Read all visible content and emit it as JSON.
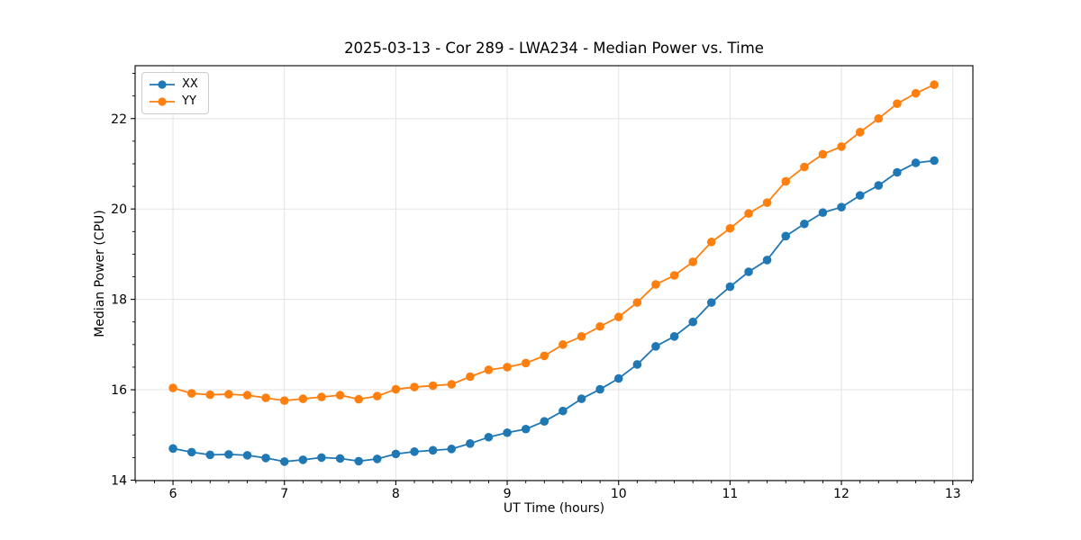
{
  "chart_data": {
    "type": "line",
    "title": "2025-03-13 - Cor 289 - LWA234 - Median Power vs. Time",
    "xlabel": "UT Time (hours)",
    "ylabel": "Median Power (CPU)",
    "xlim": [
      5.66,
      13.18
    ],
    "ylim": [
      13.99,
      23.17
    ],
    "x_ticks": [
      6,
      7,
      8,
      9,
      10,
      11,
      12,
      13
    ],
    "y_ticks": [
      14,
      16,
      18,
      20,
      22
    ],
    "x_minor_step": 0.16667,
    "y_minor_step": 0.5,
    "grid": "major-only",
    "grid_color": "#e3e3e3",
    "spine_color": "#000000",
    "legend_position": "upper-left",
    "x": [
      6.0,
      6.167,
      6.333,
      6.5,
      6.667,
      6.833,
      7.0,
      7.167,
      7.333,
      7.5,
      7.667,
      7.833,
      8.0,
      8.167,
      8.333,
      8.5,
      8.667,
      8.833,
      9.0,
      9.167,
      9.333,
      9.5,
      9.667,
      9.833,
      10.0,
      10.167,
      10.333,
      10.5,
      10.667,
      10.833,
      11.0,
      11.167,
      11.333,
      11.5,
      11.667,
      11.833,
      12.0,
      12.167,
      12.333,
      12.5,
      12.667,
      12.833
    ],
    "series": [
      {
        "name": "XX",
        "color": "#1f77b4",
        "values": [
          14.7,
          14.62,
          14.56,
          14.57,
          14.55,
          14.49,
          14.41,
          14.45,
          14.5,
          14.48,
          14.42,
          14.47,
          14.58,
          14.63,
          14.66,
          14.69,
          14.81,
          14.95,
          15.05,
          15.13,
          15.3,
          15.53,
          15.8,
          16.01,
          16.25,
          16.56,
          16.96,
          17.18,
          17.5,
          17.93,
          18.28,
          18.61,
          18.87,
          19.4,
          19.67,
          19.92,
          20.04,
          20.3,
          20.52,
          20.81,
          21.02,
          21.07
        ]
      },
      {
        "name": "YY",
        "color": "#ff7f0e",
        "values": [
          16.04,
          15.92,
          15.89,
          15.9,
          15.88,
          15.82,
          15.76,
          15.8,
          15.84,
          15.88,
          15.79,
          15.86,
          16.01,
          16.06,
          16.09,
          16.12,
          16.29,
          16.44,
          16.5,
          16.59,
          16.75,
          17.0,
          17.18,
          17.4,
          17.61,
          17.93,
          18.33,
          18.53,
          18.83,
          19.27,
          19.57,
          19.9,
          20.14,
          20.61,
          20.93,
          21.21,
          21.38,
          21.7,
          22.0,
          22.33,
          22.56,
          22.75
        ]
      }
    ]
  }
}
